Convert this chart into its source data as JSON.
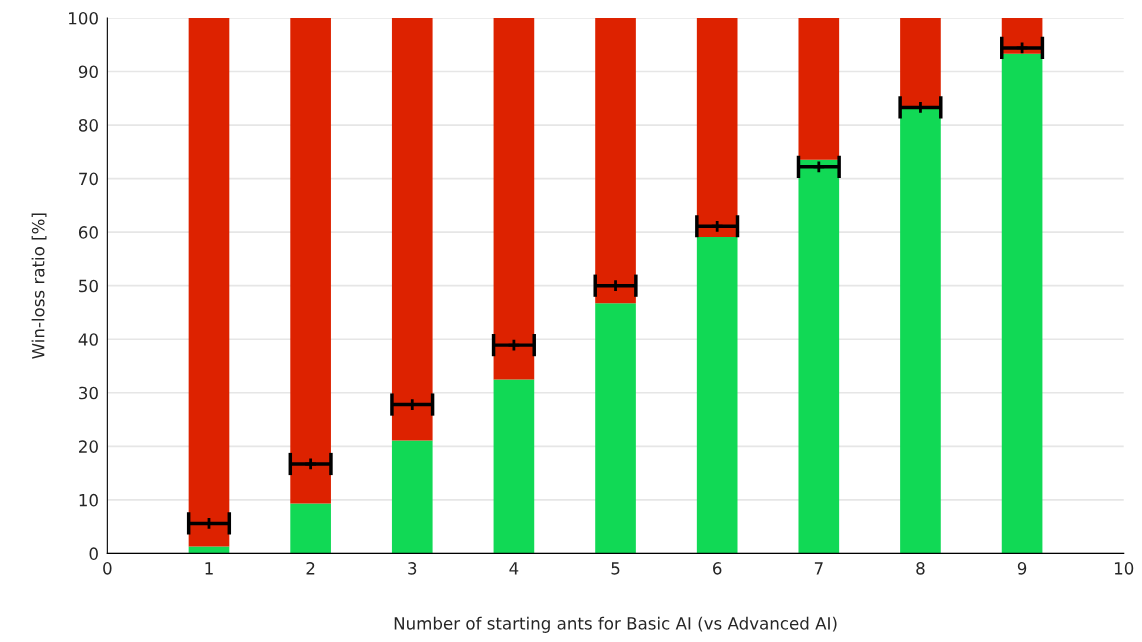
{
  "chart_data": {
    "type": "bar",
    "stacked": true,
    "xlabel": "Number of starting ants for Basic AI (vs Advanced AI)",
    "ylabel": "Win-loss ratio [%]",
    "x": [
      1,
      2,
      3,
      4,
      5,
      6,
      7,
      8,
      9
    ],
    "series": [
      {
        "color": "#11d955",
        "values": [
          1.3,
          9.3,
          21.1,
          32.5,
          46.7,
          59.1,
          73.5,
          83.2,
          93.3
        ]
      },
      {
        "color": "#dd2200",
        "values": [
          98.7,
          90.7,
          78.9,
          67.5,
          53.3,
          40.9,
          26.5,
          16.8,
          6.7
        ]
      },
      {
        "type": "scatter",
        "color": "#000000",
        "marker": "cross",
        "values": [
          5.6,
          16.7,
          27.8,
          38.9,
          50.0,
          61.1,
          72.2,
          83.3,
          94.4
        ],
        "xerrors": [
          0.2,
          0.2,
          0.2,
          0.2,
          0.2,
          0.2,
          0.2,
          0.2,
          0.2
        ]
      }
    ],
    "xlim": [
      0,
      10
    ],
    "xticks": [
      0,
      1,
      2,
      3,
      4,
      5,
      6,
      7,
      8,
      9,
      10
    ],
    "ylim": [
      0,
      100
    ],
    "yticks": [
      0,
      10,
      20,
      30,
      40,
      50,
      60,
      70,
      80,
      90,
      100
    ],
    "grid": "y",
    "legend": false
  }
}
